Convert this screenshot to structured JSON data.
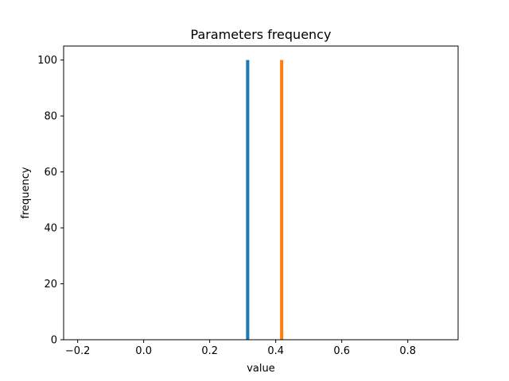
{
  "chart_data": {
    "type": "bar",
    "title": "Parameters frequency",
    "xlabel": "value",
    "ylabel": "frequency",
    "xlim": [
      -0.2425,
      0.9525
    ],
    "ylim": [
      0,
      105
    ],
    "xticks": [
      -0.2,
      0.0,
      0.2,
      0.4,
      0.6,
      0.8
    ],
    "xtick_labels": [
      "−0.2",
      "0.0",
      "0.2",
      "0.4",
      "0.6",
      "0.8"
    ],
    "yticks": [
      0,
      20,
      40,
      60,
      80,
      100
    ],
    "ytick_labels": [
      "0",
      "20",
      "40",
      "60",
      "80",
      "100"
    ],
    "grid": false,
    "series": [
      {
        "color": "#1f77b4",
        "x": [
          0.315
        ],
        "width": 0.0098,
        "values": [
          100
        ]
      },
      {
        "color": "#ff7f0e",
        "x": [
          0.418
        ],
        "width": 0.0098,
        "values": [
          100
        ]
      }
    ]
  }
}
